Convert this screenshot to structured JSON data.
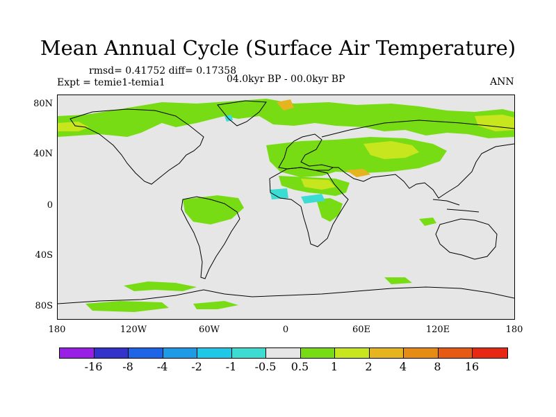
{
  "title": "Mean Annual Cycle (Surface Air Temperature)",
  "stats": "rmsd= 0.41752 diff= 0.17358",
  "experiment": "Expt = temie1-temia1",
  "period": "04.0kyr BP - 00.0kyr BP",
  "season": "ANN",
  "map": {
    "lat_labels": [
      "80N",
      "40N",
      "0",
      "40S",
      "80S"
    ],
    "lon_labels": [
      "180",
      "120W",
      "60W",
      "0",
      "60E",
      "120E",
      "180"
    ],
    "background_color": "#e6e6e6",
    "coastline_color": "#000000"
  },
  "colorbar": {
    "colors": [
      "#9a1fe6",
      "#3333cc",
      "#1e64e6",
      "#1e9be6",
      "#1ec8e6",
      "#3cdcd2",
      "#e6e6e6",
      "#78dc14",
      "#c8e61e",
      "#e6b41e",
      "#e68c14",
      "#e65a14",
      "#e62814"
    ],
    "labels": [
      "-16",
      "-8",
      "-4",
      "-2",
      "-1",
      "-0.5",
      "0.5",
      "1",
      "2",
      "4",
      "8",
      "16"
    ]
  }
}
